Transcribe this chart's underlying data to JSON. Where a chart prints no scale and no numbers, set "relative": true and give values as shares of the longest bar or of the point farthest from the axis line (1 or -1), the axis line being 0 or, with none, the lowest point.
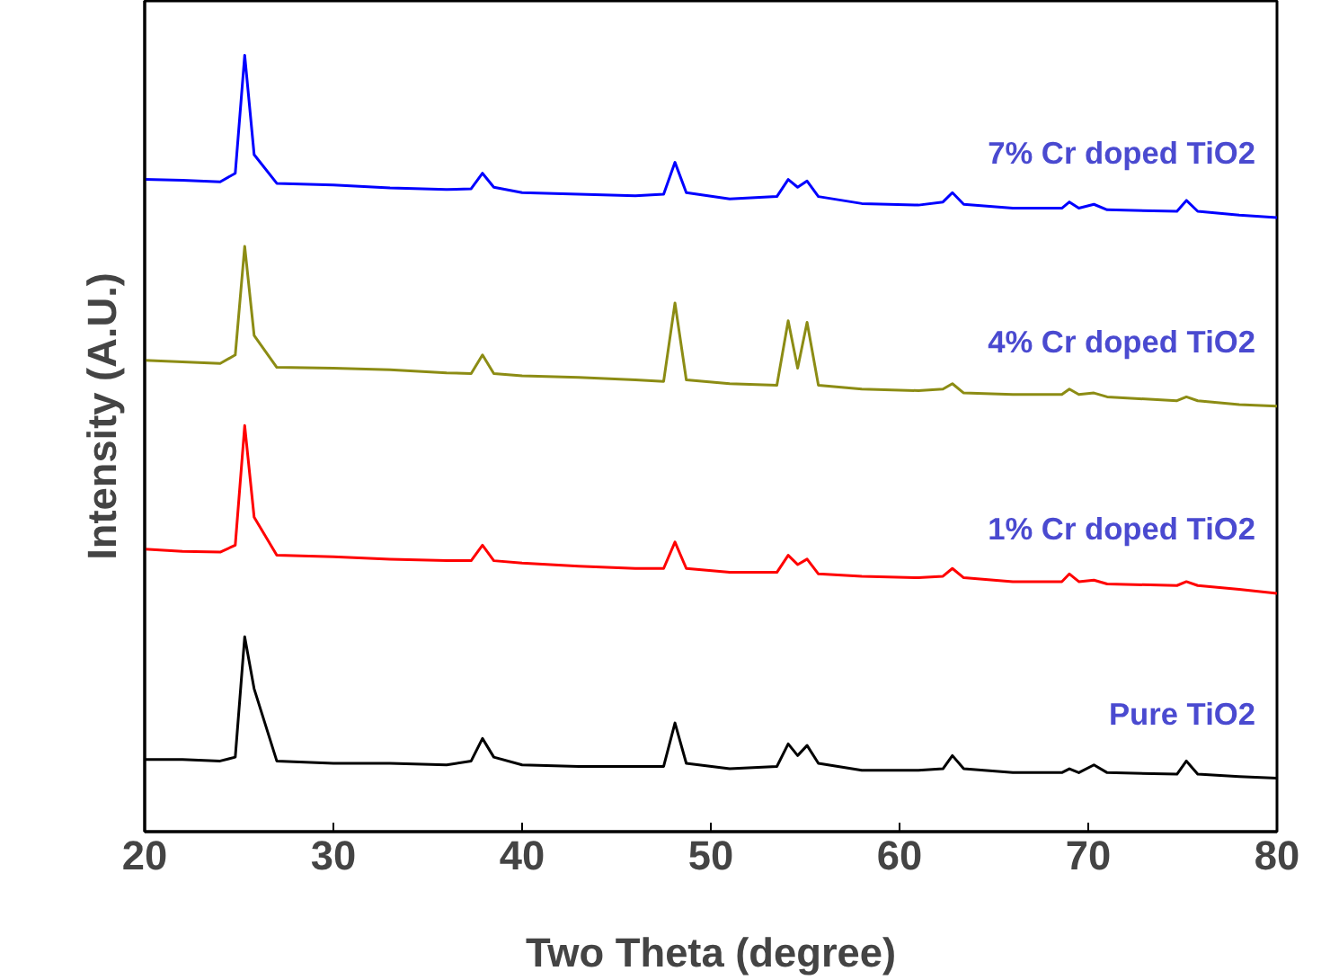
{
  "chart_data": {
    "type": "line",
    "relative": true,
    "xlabel": "Two Theta (degree)",
    "ylabel": "Intensity (A.U.)",
    "xlim": [
      20,
      80
    ],
    "xticks": [
      20,
      30,
      40,
      50,
      60,
      70,
      80
    ],
    "grid": false,
    "marker": "none",
    "line_style": "solid",
    "x": [
      20,
      22,
      24,
      24.8,
      25.3,
      25.8,
      27,
      30,
      33,
      36,
      37.3,
      37.9,
      38.5,
      40,
      43,
      46,
      47.5,
      48.1,
      48.7,
      51,
      53.5,
      54.1,
      54.6,
      55.1,
      55.7,
      58,
      61,
      62.3,
      62.8,
      63.4,
      66,
      68.6,
      69,
      69.5,
      70.3,
      71,
      74.7,
      75.2,
      75.8,
      78,
      80
    ],
    "series": [
      {
        "name": "Pure TiO2",
        "color": "#000000",
        "values": [
          0.093,
          0.093,
          0.091,
          0.096,
          0.251,
          0.184,
          0.091,
          0.088,
          0.088,
          0.086,
          0.091,
          0.12,
          0.096,
          0.086,
          0.084,
          0.084,
          0.084,
          0.14,
          0.088,
          0.081,
          0.084,
          0.113,
          0.098,
          0.111,
          0.088,
          0.079,
          0.079,
          0.081,
          0.098,
          0.081,
          0.076,
          0.076,
          0.081,
          0.076,
          0.086,
          0.076,
          0.074,
          0.091,
          0.074,
          0.071,
          0.069
        ]
      },
      {
        "name": "1% Cr doped TiO2",
        "color": "#ff0000",
        "values": [
          0.364,
          0.361,
          0.36,
          0.369,
          0.523,
          0.405,
          0.356,
          0.354,
          0.351,
          0.349,
          0.349,
          0.369,
          0.349,
          0.346,
          0.342,
          0.339,
          0.339,
          0.373,
          0.339,
          0.334,
          0.334,
          0.356,
          0.344,
          0.351,
          0.332,
          0.329,
          0.327,
          0.329,
          0.339,
          0.327,
          0.322,
          0.322,
          0.332,
          0.322,
          0.324,
          0.319,
          0.317,
          0.322,
          0.317,
          0.312,
          0.307
        ]
      },
      {
        "name": "4% Cr doped TiO2",
        "color": "#8c8c14",
        "values": [
          0.607,
          0.605,
          0.603,
          0.614,
          0.754,
          0.639,
          0.598,
          0.597,
          0.595,
          0.591,
          0.59,
          0.614,
          0.59,
          0.587,
          0.585,
          0.582,
          0.58,
          0.681,
          0.582,
          0.577,
          0.575,
          0.658,
          0.597,
          0.656,
          0.575,
          0.57,
          0.568,
          0.57,
          0.577,
          0.565,
          0.563,
          0.563,
          0.57,
          0.563,
          0.565,
          0.56,
          0.555,
          0.56,
          0.555,
          0.55,
          0.548
        ]
      },
      {
        "name": "7% Cr doped TiO2",
        "color": "#0000ff",
        "values": [
          0.84,
          0.839,
          0.837,
          0.848,
          1.0,
          0.872,
          0.835,
          0.833,
          0.829,
          0.827,
          0.828,
          0.848,
          0.83,
          0.823,
          0.821,
          0.819,
          0.821,
          0.862,
          0.823,
          0.815,
          0.818,
          0.84,
          0.83,
          0.838,
          0.818,
          0.809,
          0.807,
          0.811,
          0.823,
          0.808,
          0.803,
          0.803,
          0.811,
          0.803,
          0.808,
          0.801,
          0.799,
          0.813,
          0.799,
          0.794,
          0.791
        ]
      }
    ]
  }
}
